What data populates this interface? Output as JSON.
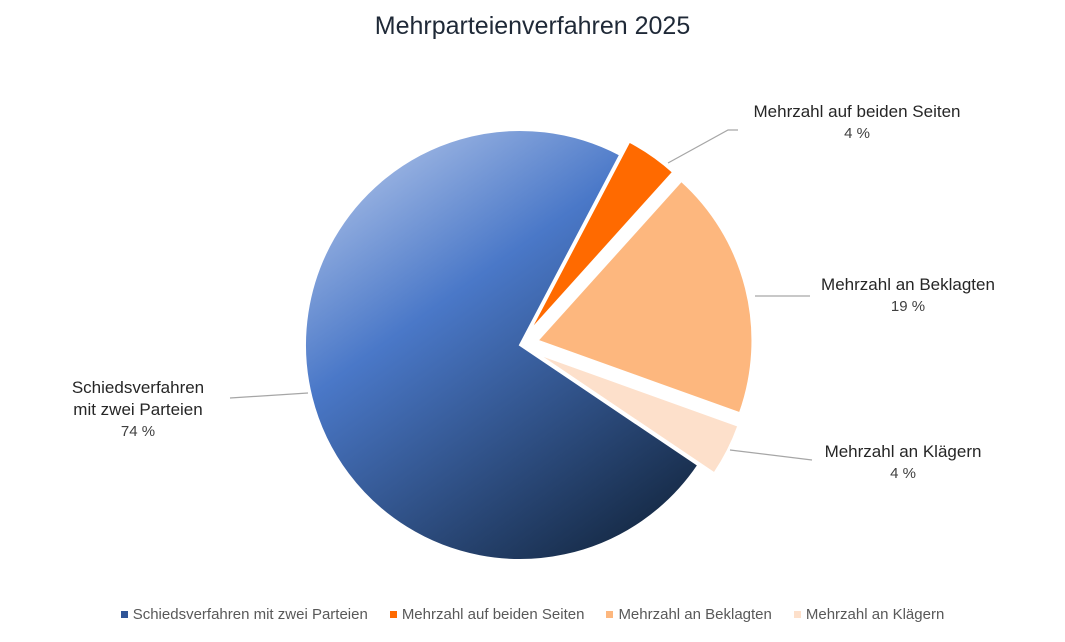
{
  "chart_data": {
    "type": "pie",
    "title": "Mehrparteienverfahren 2025",
    "categories": [
      "Schiedsverfahren mit zwei Parteien",
      "Mehrzahl auf beiden Seiten",
      "Mehrzahl an Beklagten",
      "Mehrzahl an Klägern"
    ],
    "values": [
      74,
      4,
      19,
      4
    ],
    "value_labels": [
      "74 %",
      "4 %",
      "19 %",
      "4 %"
    ],
    "colors": [
      "#4472c4",
      "#ff6a00",
      "#fdb77e",
      "#fde0cb"
    ],
    "legend": "bottom"
  }
}
